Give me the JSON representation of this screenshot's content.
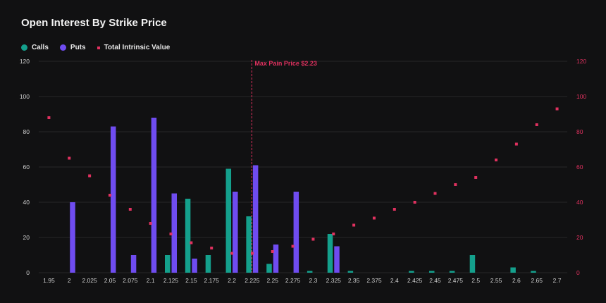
{
  "chart_data": {
    "type": "bar",
    "title": "Open Interest By Strike Price",
    "colors": {
      "calls": "#14a08c",
      "puts": "#6f4cf0",
      "intrinsic": "#e0315f",
      "marker": "#e0315f"
    },
    "categories": [
      "1.95",
      "2",
      "2.025",
      "2.05",
      "2.075",
      "2.1",
      "2.125",
      "2.15",
      "2.175",
      "2.2",
      "2.225",
      "2.25",
      "2.275",
      "2.3",
      "2.325",
      "2.35",
      "2.375",
      "2.4",
      "2.425",
      "2.45",
      "2.475",
      "2.5",
      "2.55",
      "2.6",
      "2.65",
      "2.7"
    ],
    "series": [
      {
        "name": "Calls",
        "kind": "bar",
        "values": [
          0,
          0,
          0,
          0,
          0,
          0,
          10,
          42,
          10,
          59,
          32,
          5,
          0,
          1,
          22,
          1,
          0,
          0,
          1,
          1,
          1,
          10,
          0,
          3,
          1,
          0
        ]
      },
      {
        "name": "Puts",
        "kind": "bar",
        "values": [
          0,
          40,
          0,
          83,
          10,
          88,
          45,
          8,
          0,
          46,
          61,
          16,
          46,
          0,
          15,
          0,
          0,
          0,
          0,
          0,
          0,
          0,
          0,
          0,
          0,
          0
        ]
      },
      {
        "name": "Total Intrinsic Value",
        "kind": "scatter",
        "axis": "right",
        "values": [
          88,
          65,
          55,
          44,
          36,
          28,
          22,
          17,
          14,
          11,
          11,
          12,
          15,
          19,
          22,
          27,
          31,
          36,
          40,
          45,
          50,
          54,
          64,
          73,
          84,
          93
        ]
      }
    ],
    "ylim": [
      0,
      120
    ],
    "y2lim": [
      0,
      120
    ],
    "yticks": [
      0,
      20,
      40,
      60,
      80,
      100,
      120
    ],
    "y2ticks": [
      0,
      20,
      40,
      60,
      80,
      100,
      120
    ],
    "legend": [
      "Calls",
      "Puts",
      "Total Intrinsic Value"
    ],
    "legend_position": "top-left",
    "annotation": {
      "label": "Max Pain Price $2.23",
      "category": "2.225"
    },
    "grid": true
  }
}
